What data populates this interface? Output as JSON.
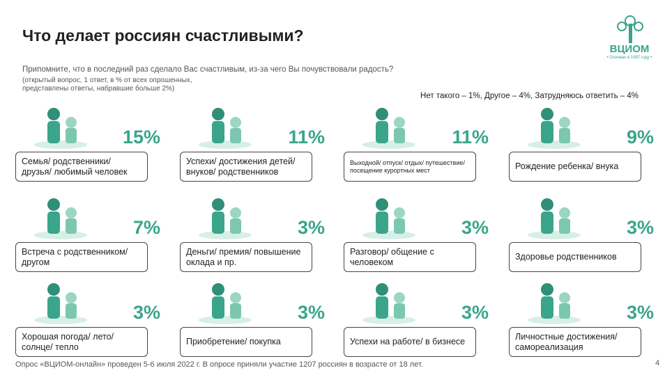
{
  "header": {
    "title": "Что делает россиян счастливыми?",
    "question": "Припомните, что в последний раз сделало Вас счастливым, из-за чего Вы почувствовали радость?",
    "note": "(открытый вопрос, 1 ответ, в % от всех опрошенных,\nпредставлены ответы, набравшие больше 2%)",
    "other": "Нет такого – 1%, Другое – 4%, Затрудняюсь ответить – 4%"
  },
  "logo": {
    "name": "ВЦИОМ",
    "tagline": "• Основан в 1987 году •"
  },
  "items": [
    {
      "label": "Семья/ родственники/ друзья/ любимый человек",
      "value": "15%"
    },
    {
      "label": "Успехи/ достижения детей/ внуков/ родственников",
      "value": "11%"
    },
    {
      "label": "Выходной/ отпуск/ отдых/ путешествие/ посещение курортных мест",
      "value": "11%"
    },
    {
      "label": "Рождение ребенка/ внука",
      "value": "9%"
    },
    {
      "label": "Встреча с родственником/ другом",
      "value": "7%"
    },
    {
      "label": "Деньги/ премия/ повышение оклада и пр.",
      "value": "3%"
    },
    {
      "label": "Разговор/ общение с человеком",
      "value": "3%"
    },
    {
      "label": "Здоровье родственников",
      "value": "3%"
    },
    {
      "label": "Хорошая погода/ лето/ солнце/ тепло",
      "value": "3%"
    },
    {
      "label": "Приобретение/ покупка",
      "value": "3%"
    },
    {
      "label": "Успехи на работе/ в бизнесе",
      "value": "3%"
    },
    {
      "label": "Личностные достижения/ самореализация",
      "value": "3%"
    }
  ],
  "footer": {
    "source": "Опрос «ВЦИОМ-онлайн» проведен 5-6 июля 2022 г. В опросе приняли участие 1207 россиян в возрасте от 18 лет.",
    "page": "4"
  }
}
